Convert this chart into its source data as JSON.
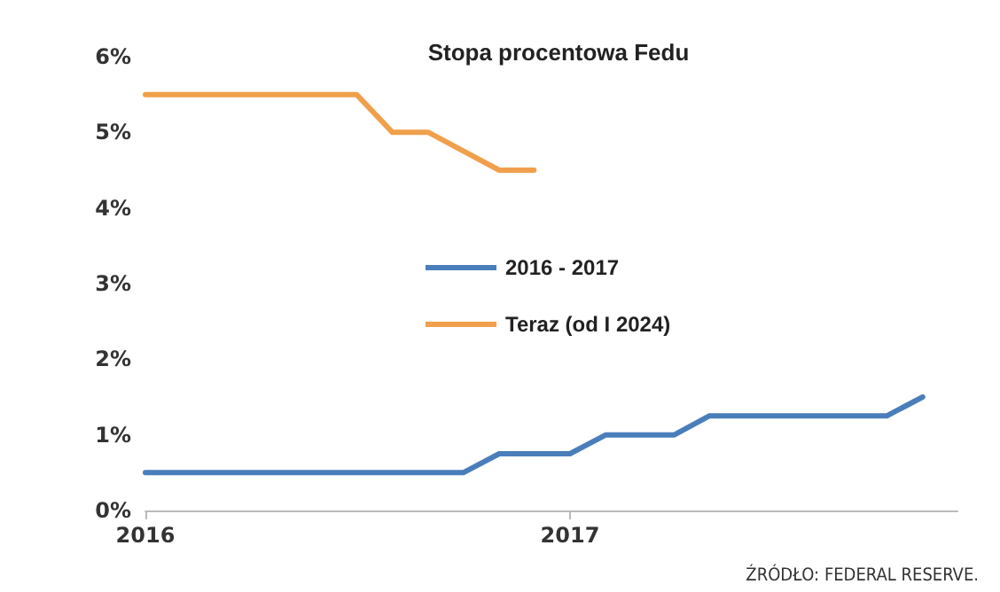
{
  "chart_data": {
    "type": "line",
    "title": "Stopa procentowa Fedu",
    "xlim": [
      "2016-01",
      "2017-12"
    ],
    "xticks": [
      "2016",
      "2017"
    ],
    "ylim": [
      0,
      6
    ],
    "yticks": [
      {
        "value": 0,
        "label": "0%"
      },
      {
        "value": 1,
        "label": "1%"
      },
      {
        "value": 2,
        "label": "2%"
      },
      {
        "value": 3,
        "label": "3%"
      },
      {
        "value": 4,
        "label": "4%"
      },
      {
        "value": 5,
        "label": "5%"
      },
      {
        "value": 6,
        "label": "6%"
      }
    ],
    "series": [
      {
        "name": "2016 - 2017",
        "color": "#4a7ebb",
        "x": [
          "2016-01",
          "2016-10",
          "2016-11",
          "2017-01",
          "2017-02",
          "2017-04",
          "2017-05",
          "2017-10",
          "2017-11"
        ],
        "values": [
          0.5,
          0.5,
          0.75,
          0.75,
          1,
          1,
          1.25,
          1.25,
          1.5
        ]
      },
      {
        "name": "Teraz (od I 2024)",
        "color": "#f0a04b",
        "x": [
          "2016-01",
          "2016-07",
          "2016-08",
          "2016-09",
          "2016-11",
          "2016-12"
        ],
        "values": [
          5.5,
          5.5,
          5,
          5,
          4.5,
          4.5
        ]
      }
    ],
    "grid": false,
    "legend": "center",
    "marker": "none",
    "line_style": "solid",
    "annotations": [
      "ŹRÓDŁO: FEDERAL RESERVE."
    ]
  }
}
